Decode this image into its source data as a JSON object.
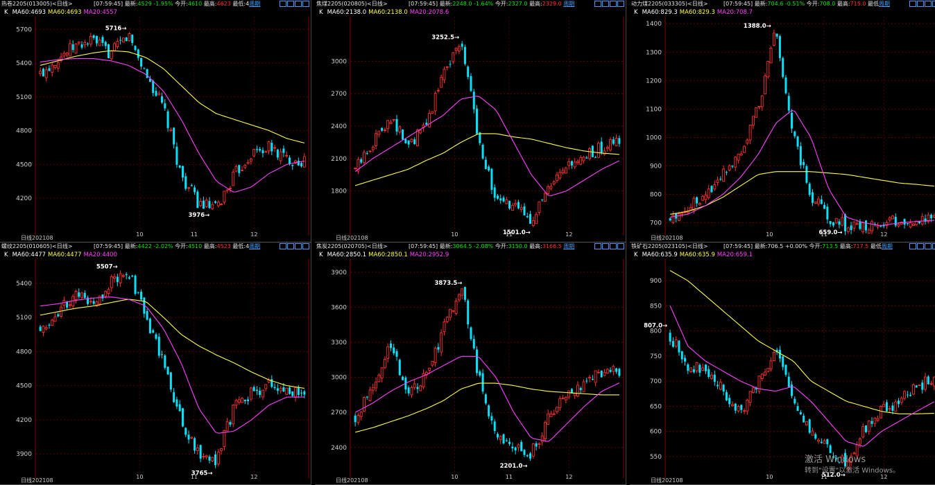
{
  "bar_labels": {
    "period_label": "日线",
    "period_button": "周期"
  },
  "watermark": {
    "line1": "激活 Windows",
    "line2": "转到\"设置\"以激活 Windows。"
  },
  "colors": {
    "up": "#ff3030",
    "down": "#00e5ff",
    "ma20": "#ff40ff",
    "ma60": "#ffff40",
    "grid": "#7a0000"
  },
  "panels": [
    {
      "symbol": "热卷2205(013005)<日线>",
      "time": "[07:59:45]",
      "latest_label": "最新:",
      "latest": "4529",
      "chg": "-1.95%",
      "open_label": "今开:",
      "open": "4610",
      "high_label": "最高:",
      "high": "4623",
      "low_label": "最低:4",
      "ma_k": "K",
      "ma60": "MA60:4693",
      "ma60y": "MA60:4693",
      "ma20": "MA20:4557",
      "start_date": "202108",
      "ext_high": "5716",
      "ext_low": "3976",
      "chart_data": {
        "type": "candlestick",
        "yticks": [
          5700,
          5400,
          5100,
          4800,
          4500,
          4200
        ],
        "xticks": [
          "10",
          "11",
          "12"
        ],
        "ylim": [
          3880,
          5800
        ],
        "ma20": [
          5410,
          5430,
          5440,
          5440,
          5420,
          5380,
          5300,
          5150,
          4900,
          4600,
          4350,
          4250,
          4300,
          4420,
          4500,
          4530
        ],
        "ma60": [
          5380,
          5420,
          5460,
          5490,
          5510,
          5500,
          5450,
          5350,
          5200,
          5050,
          4950,
          4900,
          4850,
          4800,
          4730,
          4690
        ],
        "close": [
          5300,
          5450,
          5550,
          5600,
          5480,
          5650,
          5300,
          5000,
          4400,
          4150,
          4100,
          4400,
          4600,
          4650,
          4550,
          4529
        ]
      }
    },
    {
      "symbol": "焦煤2205(020805)<日线>",
      "time": "[07:59:45]",
      "latest_label": "最新:",
      "latest": "2248.0",
      "chg": "-1.64%",
      "open_label": "今开:",
      "open": "2327.0",
      "high_label": "最高:",
      "high": "2329.0",
      "low_label": "",
      "ma_k": "K",
      "ma60": "MA60:2138.0",
      "ma60y": "MA60:2138.0",
      "ma20": "MA20:2078.6",
      "start_date": "202108",
      "ext_high": "3252.5",
      "ext_low": "1501.0",
      "chart_data": {
        "type": "candlestick",
        "yticks": [
          3000,
          2700,
          2400,
          2100,
          1800
        ],
        "xticks": [
          "10",
          "11",
          "12"
        ],
        "ylim": [
          1400,
          3400
        ],
        "ma20": [
          1980,
          2100,
          2200,
          2300,
          2400,
          2500,
          2650,
          2680,
          2550,
          2250,
          1950,
          1750,
          1800,
          1900,
          2000,
          2080
        ],
        "ma60": [
          1850,
          1900,
          1950,
          2000,
          2080,
          2150,
          2250,
          2330,
          2330,
          2300,
          2280,
          2240,
          2200,
          2170,
          2150,
          2138
        ],
        "close": [
          2000,
          2250,
          2500,
          2200,
          2400,
          2900,
          3200,
          2300,
          1700,
          1650,
          1550,
          1800,
          2000,
          2100,
          2200,
          2248
        ]
      }
    },
    {
      "symbol": "动力煤2205(033305)<日线>",
      "time": "[07:59:45]",
      "latest_label": "最新:",
      "latest": "704.6",
      "chg": "-0.51%",
      "open_label": "今开:",
      "open": "708.0",
      "high_label": "最高:",
      "high": "715.0",
      "low_label": "最低",
      "ma_k": "K",
      "ma60": "MA60:829.3",
      "ma60y": "MA60:829.3",
      "ma20": "MA20:708.7",
      "start_date": "202108",
      "ext_high": "1388.0",
      "ext_low": "659.0",
      "chart_data": {
        "type": "candlestick",
        "yticks": [
          1400,
          1300,
          1200,
          1100,
          1000,
          900,
          800,
          700
        ],
        "xticks": [
          "10",
          "11",
          "12"
        ],
        "ylim": [
          660,
          1420
        ],
        "ma20": [
          720,
          730,
          760,
          800,
          860,
          940,
          1050,
          1100,
          1000,
          820,
          720,
          700,
          690,
          700,
          705,
          709
        ],
        "ma60": [
          730,
          740,
          760,
          790,
          830,
          870,
          880,
          880,
          880,
          875,
          870,
          860,
          850,
          840,
          835,
          829
        ],
        "close": [
          710,
          760,
          800,
          880,
          950,
          1100,
          1380,
          1000,
          800,
          720,
          690,
          680,
          700,
          705,
          710,
          705
        ]
      }
    },
    {
      "symbol": "螺纹2205(010605)<日线>",
      "time": "[07:59:45]",
      "latest_label": "最新:",
      "latest": "4422",
      "chg": "-2.02%",
      "open_label": "今开:",
      "open": "4510",
      "high_label": "最高:",
      "high": "4523",
      "low_label": "最低:4",
      "ma_k": "K",
      "ma60": "MA60:4477",
      "ma60y": "MA60:4477",
      "ma20": "MA20:4400",
      "start_date": "202108",
      "ext_high": "5507",
      "ext_low": "3765",
      "chart_data": {
        "type": "candlestick",
        "yticks": [
          5400,
          5100,
          4800,
          4500,
          4200,
          3900
        ],
        "xticks": [
          "10",
          "11",
          "12"
        ],
        "ylim": [
          3700,
          5600
        ],
        "ma20": [
          5200,
          5220,
          5250,
          5270,
          5280,
          5260,
          5200,
          5000,
          4700,
          4300,
          4080,
          4100,
          4200,
          4330,
          4400,
          4400
        ],
        "ma60": [
          5120,
          5150,
          5180,
          5200,
          5230,
          5260,
          5240,
          5100,
          4950,
          4850,
          4770,
          4700,
          4620,
          4550,
          4500,
          4477
        ],
        "close": [
          5000,
          5150,
          5300,
          5200,
          5400,
          5500,
          5100,
          4700,
          4200,
          3900,
          3850,
          4300,
          4450,
          4500,
          4450,
          4422
        ]
      }
    },
    {
      "symbol": "焦炭2205(020705)<日线>",
      "time": "[07:59:45]",
      "latest_label": "最新:",
      "latest": "3064.5",
      "chg": "-2.08%",
      "open_label": "今开:",
      "open": "3150.0",
      "high_label": "最高:",
      "high": "3166.5",
      "low_label": "",
      "ma_k": "K",
      "ma60": "MA60:2850.1",
      "ma60y": "MA60:2850.1",
      "ma20": "MA20:2952.9",
      "start_date": "202108",
      "ext_high": "3873.5",
      "ext_low": "2201.0",
      "chart_data": {
        "type": "candlestick",
        "yticks": [
          3900,
          3600,
          3300,
          3000,
          2700,
          2400
        ],
        "xticks": [
          "10",
          "11",
          "12"
        ],
        "ylim": [
          2150,
          4000
        ],
        "ma20": [
          2700,
          2780,
          2880,
          2960,
          3020,
          3100,
          3180,
          3180,
          3000,
          2700,
          2480,
          2450,
          2600,
          2750,
          2880,
          2953
        ],
        "ma60": [
          2530,
          2570,
          2620,
          2670,
          2730,
          2800,
          2900,
          2950,
          2950,
          2930,
          2900,
          2880,
          2870,
          2860,
          2850,
          2850
        ],
        "close": [
          2650,
          2950,
          3300,
          2850,
          3000,
          3400,
          3800,
          3000,
          2500,
          2400,
          2350,
          2650,
          2850,
          2950,
          3050,
          3064
        ]
      }
    },
    {
      "symbol": "铁矿石2205(023105)<日线>",
      "time": "[07:59:45]",
      "latest_label": "最新:",
      "latest": "706.5",
      "chg": "+0.00%",
      "open_label": "今开:",
      "open": "713.5",
      "high_label": "最高:",
      "high": "717.5",
      "low_label": "最低",
      "ma_k": "K",
      "ma60": "MA60:635.9",
      "ma60y": "MA60:635.9",
      "ma20": "MA20:659.1",
      "start_date": "202108",
      "ext_high": "807.0",
      "ext_low": "512.0",
      "chart_data": {
        "type": "candlestick",
        "yticks": [
          900,
          850,
          800,
          750,
          700,
          650,
          600,
          550
        ],
        "xticks": [
          "10",
          "11",
          "12"
        ],
        "ylim": [
          510,
          940
        ],
        "ma20": [
          850,
          770,
          740,
          720,
          700,
          685,
          680,
          690,
          660,
          620,
          580,
          570,
          600,
          620,
          640,
          659
        ],
        "ma60": [
          920,
          900,
          870,
          840,
          810,
          780,
          760,
          740,
          700,
          680,
          660,
          650,
          640,
          635,
          635,
          636
        ],
        "close": [
          790,
          730,
          720,
          680,
          640,
          700,
          760,
          660,
          600,
          560,
          540,
          600,
          640,
          660,
          690,
          706
        ]
      }
    }
  ]
}
